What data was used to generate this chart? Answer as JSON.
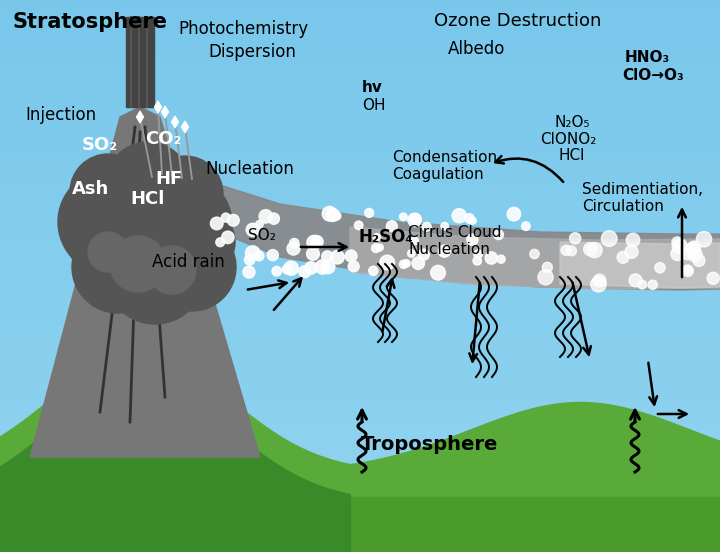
{
  "bg_color": "#7ecfef",
  "sky_color_top": "#a8dff0",
  "sky_color_bot": "#60bfe0",
  "ground_color": "#5aaa3a",
  "ground_dark": "#4a9a2a",
  "volcano_color": "#777777",
  "volcano_dark": "#555555",
  "ash_cloud_dark": "#555555",
  "ash_cloud_mid": "#666666",
  "plume_dark": "#888888",
  "plume_mid": "#aaaaaa",
  "plume_light": "#cccccc",
  "white": "#ffffff",
  "black": "#000000",
  "stratosphere_label": "Stratosphere",
  "troposphere_label": "Troposphere",
  "ozone_label": "Ozone Destruction",
  "injection_label": "Injection",
  "dispersion_label": "Dispersion",
  "photochem_label": "Photochemistry",
  "albedo_label": "Albedo",
  "nucleation_label": "Nucleation",
  "condensation_label": "Condensation,",
  "coagulation_label": "Coagulation",
  "sedimentation_label": "Sedimentiation,",
  "circulation_label": "Circulation",
  "cirrus1_label": "Cirrus Cloud",
  "cirrus2_label": "Nucleation",
  "acid_rain_label": "Acid rain",
  "so2_label": "SO₂",
  "co2_label": "CO₂",
  "hf_label": "HF",
  "hcl_label": "HCl",
  "ash_label": "Ash",
  "so2_arrow_label": "SO₂",
  "h2so4_label": "H₂SO₄",
  "hv_label": "hv",
  "oh_label": "OH",
  "n2o5_label": "N₂O₅",
  "clono2_label": "ClONO₂",
  "hcl2_label": "HCl",
  "hno3_label": "HNO₃",
  "clo_o3_label": "ClO→O₃",
  "figsize": [
    7.2,
    5.52
  ],
  "dpi": 100
}
